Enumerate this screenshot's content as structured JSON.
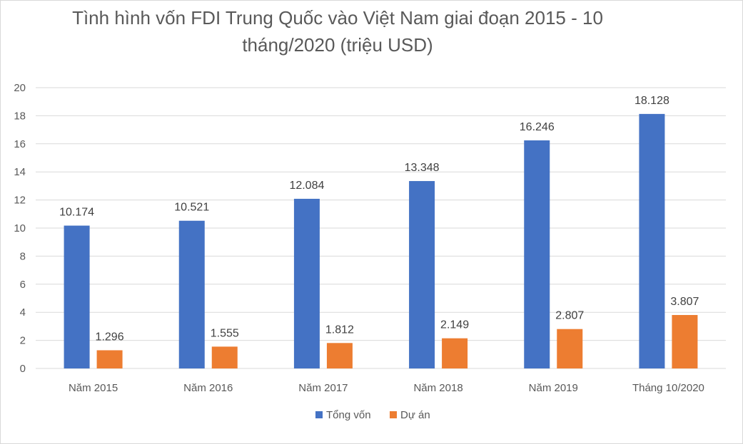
{
  "chart_data": {
    "type": "bar",
    "title": "Tình hình vốn FDI Trung Quốc vào Việt Nam giai đoạn 2015 - 10\ntháng/2020 (triệu USD)",
    "categories": [
      "Năm 2015",
      "Năm 2016",
      "Năm 2017",
      "Năm 2018",
      "Năm 2019",
      "Tháng 10/2020"
    ],
    "series": [
      {
        "name": "Tổng vốn",
        "color": "#4472C4",
        "values": [
          10.174,
          10.521,
          12.084,
          13.348,
          16.246,
          18.128
        ],
        "labels": [
          "10.174",
          "10.521",
          "12.084",
          "13.348",
          "16.246",
          "18.128"
        ]
      },
      {
        "name": "Dự án",
        "color": "#ED7D31",
        "values": [
          1.296,
          1.555,
          1.812,
          2.149,
          2.807,
          3.807
        ],
        "labels": [
          "1.296",
          "1.555",
          "1.812",
          "2.149",
          "2.807",
          "3.807"
        ]
      }
    ],
    "ylim": [
      0,
      20
    ],
    "yticks": [
      0,
      2,
      4,
      6,
      8,
      10,
      12,
      14,
      16,
      18,
      20
    ],
    "grid": true,
    "legend": "bottom"
  }
}
